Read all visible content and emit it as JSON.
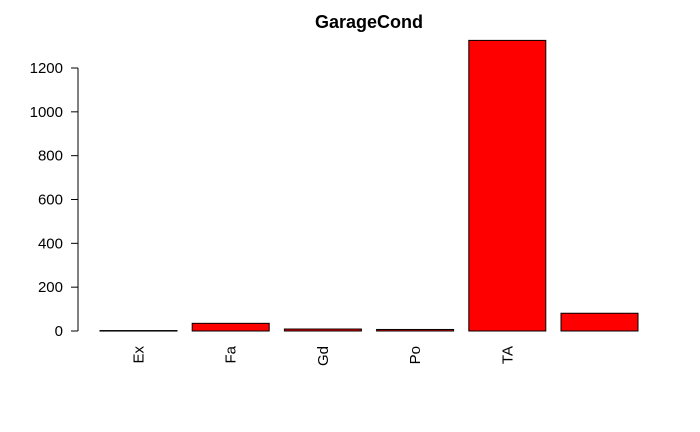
{
  "chart_data": {
    "type": "bar",
    "title": "GarageCond",
    "xlabel": "",
    "ylabel": "",
    "categories": [
      "Ex",
      "Fa",
      "Gd",
      "Po",
      "TA",
      ""
    ],
    "values": [
      2,
      35,
      9,
      7,
      1326,
      81
    ],
    "yticks": [
      0,
      200,
      400,
      600,
      800,
      1000,
      1200
    ],
    "ylim": [
      0,
      1326
    ],
    "bar_color": "#ff0000",
    "grid": false,
    "legend": "none"
  }
}
